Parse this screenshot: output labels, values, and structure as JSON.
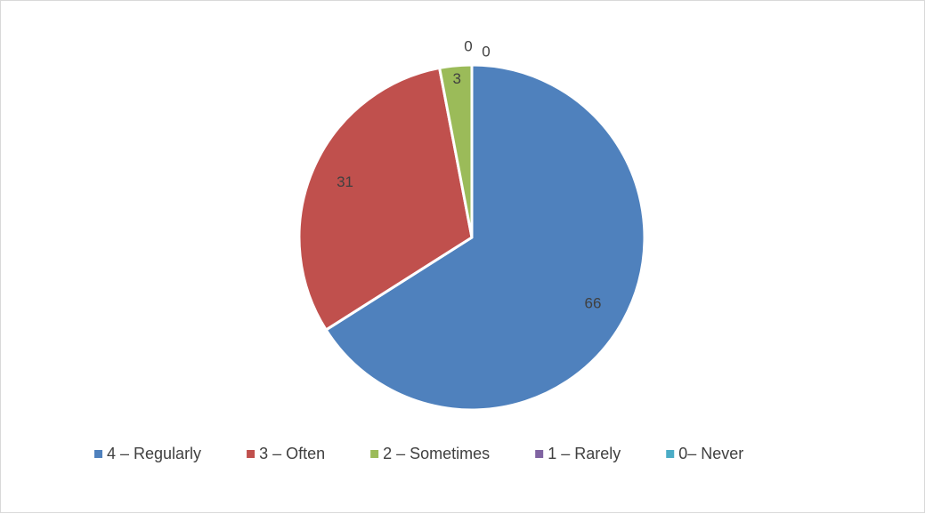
{
  "chart_data": {
    "type": "pie",
    "title": "",
    "categories": [
      "4 – Regularly",
      "3 – Often",
      "2 – Sometimes",
      "1 – Rarely",
      "0– Never"
    ],
    "values": [
      66,
      31,
      3,
      0,
      0
    ],
    "data_labels": [
      "66",
      "31",
      "3",
      "0",
      "0"
    ],
    "colors": [
      "#4f81bd",
      "#c0504d",
      "#9bbb59",
      "#8064a2",
      "#4bacc6"
    ],
    "legend_position": "bottom",
    "start_angle": "top",
    "direction": "clockwise"
  }
}
